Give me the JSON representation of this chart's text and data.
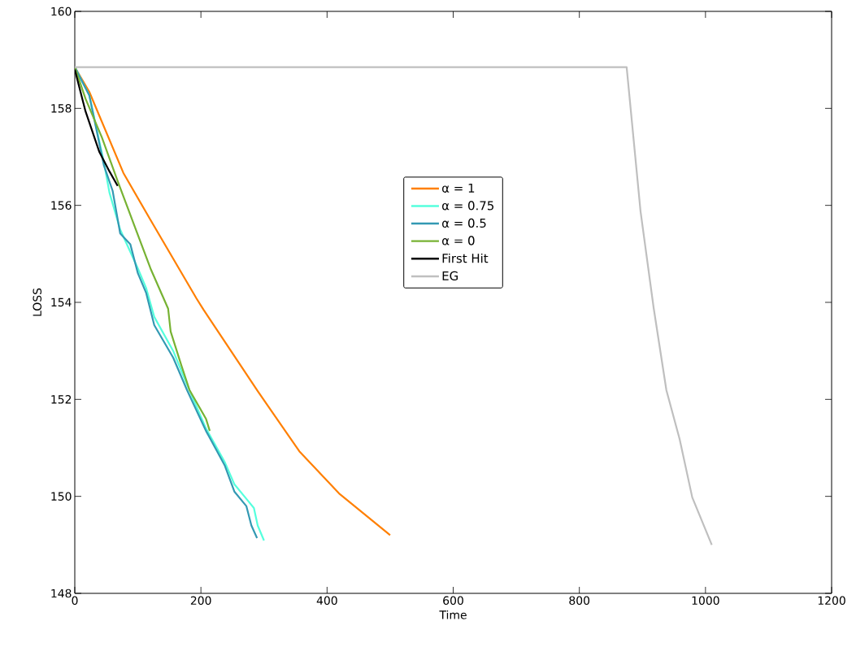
{
  "chart_data": {
    "type": "line",
    "xlabel": "Time",
    "ylabel": "LOSS",
    "xlim": [
      0,
      1200
    ],
    "ylim": [
      148,
      160
    ],
    "xticks": [
      0,
      200,
      400,
      600,
      800,
      1000,
      1200
    ],
    "yticks": [
      148,
      150,
      152,
      154,
      156,
      158,
      160
    ],
    "grid": false,
    "legend": "center",
    "marker": "none",
    "line_style": "solid",
    "series": [
      {
        "name": "α = 1",
        "color": "#ff7f00",
        "x": [
          0,
          23,
          77,
          120,
          193,
          204,
          290,
          356,
          419,
          500
        ],
        "values": [
          158.85,
          158.34,
          156.67,
          155.7,
          154.08,
          153.85,
          152.17,
          150.93,
          150.06,
          149.2
        ]
      },
      {
        "name": "α = 0.75",
        "color": "#55ffdd",
        "x": [
          0,
          23,
          46,
          55,
          72,
          100,
          113,
          126,
          156,
          178,
          208,
          238,
          253,
          272,
          284,
          290,
          300
        ],
        "values": [
          158.85,
          158.27,
          156.9,
          156.26,
          155.5,
          154.7,
          154.3,
          153.7,
          153.0,
          152.3,
          151.4,
          150.7,
          150.25,
          149.95,
          149.76,
          149.4,
          149.09
        ]
      },
      {
        "name": "α = 0.5",
        "color": "#3399b3",
        "x": [
          0,
          23,
          46,
          60,
          72,
          88,
          100,
          113,
          126,
          156,
          178,
          208,
          238,
          253,
          272,
          280,
          289
        ],
        "values": [
          158.85,
          158.27,
          156.83,
          156.3,
          155.42,
          155.2,
          154.6,
          154.2,
          153.53,
          152.86,
          152.19,
          151.35,
          150.63,
          150.1,
          149.8,
          149.4,
          149.14
        ]
      },
      {
        "name": "α = 0",
        "color": "#77b233",
        "x": [
          0,
          17,
          43,
          68,
          94,
          120,
          148,
          152,
          169,
          182,
          208,
          214
        ],
        "values": [
          158.85,
          158.2,
          157.4,
          156.5,
          155.6,
          154.7,
          153.87,
          153.4,
          152.7,
          152.19,
          151.6,
          151.35
        ]
      },
      {
        "name": "First Hit",
        "color": "#000000",
        "x": [
          0,
          17,
          39,
          55,
          68
        ],
        "values": [
          158.8,
          157.94,
          157.1,
          156.7,
          156.4
        ]
      },
      {
        "name": "EG",
        "color": "#bfbfbf",
        "x": [
          0,
          875,
          897,
          918,
          938,
          959,
          979,
          1010
        ],
        "values": [
          158.85,
          158.85,
          155.88,
          153.87,
          152.19,
          151.18,
          149.98,
          149.0
        ]
      }
    ]
  }
}
